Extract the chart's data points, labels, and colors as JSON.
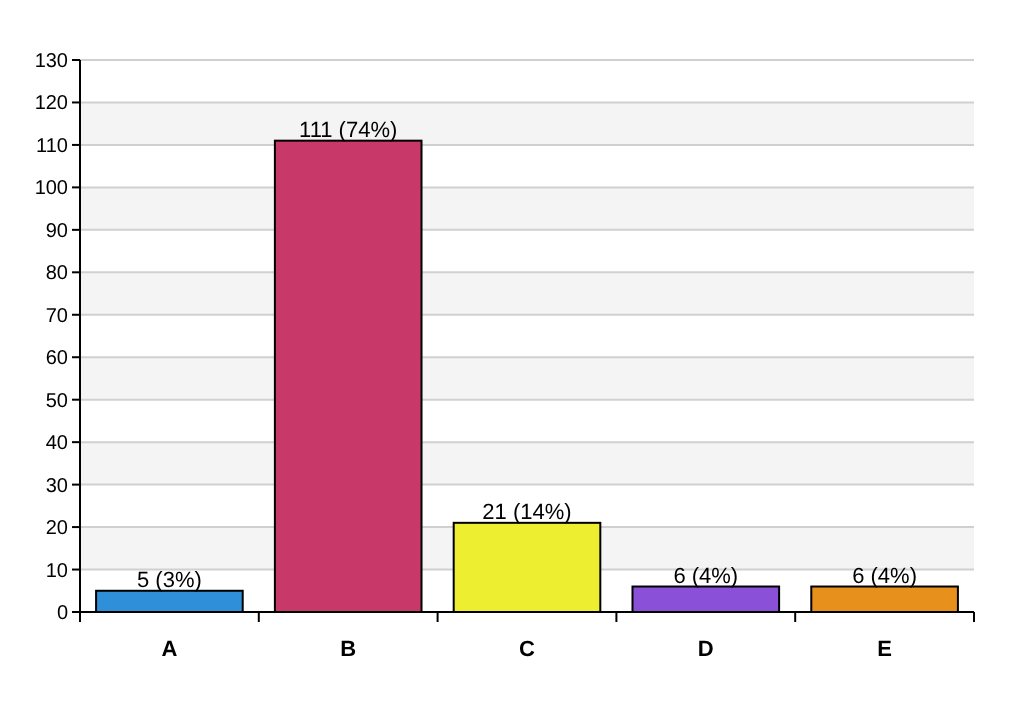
{
  "chart_data": {
    "type": "bar",
    "categories": [
      "A",
      "B",
      "C",
      "D",
      "E"
    ],
    "values": [
      5,
      111,
      21,
      6,
      6
    ],
    "colors": [
      "#2f8fd8",
      "#c8396a",
      "#eeee30",
      "#8a50d8",
      "#e8901c"
    ],
    "value_labels": [
      "5 (3%)",
      "111 (74%)",
      "21 (14%)",
      "6 (4%)",
      "6 (4%)"
    ],
    "ylim": [
      0,
      130
    ],
    "yticks": [
      0,
      10,
      20,
      30,
      40,
      50,
      60,
      70,
      80,
      90,
      100,
      110,
      120,
      130
    ],
    "grid": "y"
  }
}
